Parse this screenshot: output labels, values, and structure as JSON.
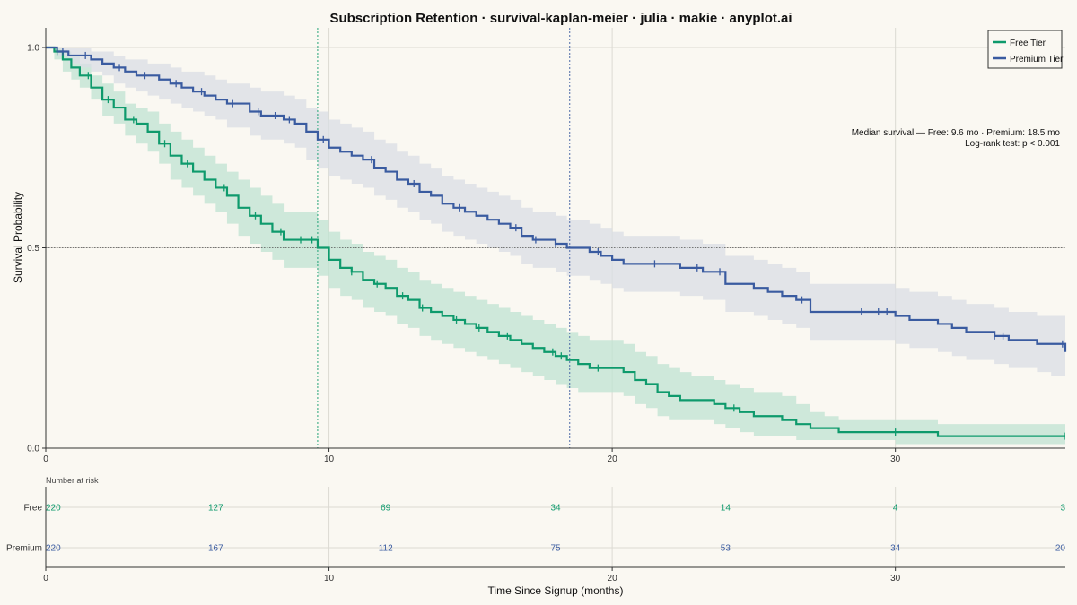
{
  "title": "Subscription Retention · survival-kaplan-meier · julia · makie · anyplot.ai",
  "colors": {
    "free": "#0e9a6c",
    "premium": "#3a5ba0",
    "free_band": "#bfe3d2",
    "premium_band": "#d9dde4",
    "background": "#faf8f2"
  },
  "chart_data": [
    {
      "type": "line",
      "kind": "kaplan-meier",
      "ylabel": "Survival Probability",
      "xlim": [
        0,
        36
      ],
      "ylim": [
        0,
        1.0
      ],
      "xticks": [
        0,
        10,
        20,
        30
      ],
      "yticks": [
        0.0,
        0.5,
        1.0
      ],
      "ytick_labels": [
        "0.0",
        "0.5",
        "1.0"
      ],
      "legend_position": "top-right",
      "reference_line_y": 0.5,
      "median_lines": [
        {
          "series": "Free Tier",
          "x": 9.6
        },
        {
          "series": "Premium Tier",
          "x": 18.5
        }
      ],
      "annotations": [
        "Median survival — Free: 9.6 mo · Premium: 18.5 mo",
        "Log-rank test: p < 0.001"
      ],
      "series": [
        {
          "name": "Free Tier",
          "color": "#0e9a6c",
          "x": [
            0,
            0.3,
            0.6,
            0.9,
            1.2,
            1.6,
            2.0,
            2.4,
            2.8,
            3.2,
            3.6,
            4.0,
            4.4,
            4.8,
            5.2,
            5.6,
            6.0,
            6.4,
            6.8,
            7.2,
            7.6,
            8.0,
            8.4,
            8.8,
            9.2,
            9.6,
            10.0,
            10.4,
            10.8,
            11.2,
            11.6,
            12.0,
            12.4,
            12.8,
            13.2,
            13.6,
            14.0,
            14.4,
            14.8,
            15.2,
            15.6,
            16.0,
            16.4,
            16.8,
            17.2,
            17.6,
            18.0,
            18.4,
            18.8,
            19.2,
            19.6,
            20.0,
            20.4,
            20.8,
            21.2,
            21.6,
            22.0,
            22.4,
            22.8,
            23.2,
            23.6,
            24.0,
            24.5,
            25.0,
            25.5,
            26.0,
            26.5,
            27.0,
            27.5,
            28.0,
            28.5,
            29.0,
            29.5,
            30.0,
            30.5,
            31.0,
            31.5,
            32.0,
            33.0,
            34.0,
            35.0,
            36.0
          ],
          "y": [
            1.0,
            0.99,
            0.97,
            0.95,
            0.93,
            0.9,
            0.87,
            0.85,
            0.82,
            0.81,
            0.79,
            0.76,
            0.73,
            0.71,
            0.69,
            0.67,
            0.65,
            0.63,
            0.6,
            0.58,
            0.56,
            0.54,
            0.52,
            0.52,
            0.52,
            0.5,
            0.47,
            0.45,
            0.44,
            0.42,
            0.41,
            0.4,
            0.38,
            0.37,
            0.35,
            0.34,
            0.33,
            0.32,
            0.31,
            0.3,
            0.29,
            0.28,
            0.27,
            0.26,
            0.25,
            0.24,
            0.23,
            0.22,
            0.21,
            0.2,
            0.2,
            0.2,
            0.19,
            0.17,
            0.16,
            0.14,
            0.13,
            0.12,
            0.12,
            0.12,
            0.11,
            0.1,
            0.09,
            0.08,
            0.08,
            0.07,
            0.06,
            0.05,
            0.05,
            0.04,
            0.04,
            0.04,
            0.04,
            0.04,
            0.04,
            0.04,
            0.03,
            0.03,
            0.03,
            0.03,
            0.03,
            0.03
          ],
          "lower": [
            1.0,
            0.97,
            0.94,
            0.92,
            0.9,
            0.87,
            0.83,
            0.81,
            0.78,
            0.76,
            0.74,
            0.71,
            0.67,
            0.65,
            0.63,
            0.61,
            0.59,
            0.56,
            0.53,
            0.51,
            0.49,
            0.47,
            0.45,
            0.45,
            0.45,
            0.43,
            0.4,
            0.38,
            0.37,
            0.35,
            0.34,
            0.33,
            0.31,
            0.3,
            0.28,
            0.27,
            0.26,
            0.25,
            0.24,
            0.23,
            0.22,
            0.21,
            0.2,
            0.19,
            0.18,
            0.17,
            0.16,
            0.15,
            0.14,
            0.14,
            0.14,
            0.14,
            0.13,
            0.11,
            0.1,
            0.08,
            0.07,
            0.07,
            0.07,
            0.07,
            0.06,
            0.05,
            0.04,
            0.03,
            0.03,
            0.03,
            0.02,
            0.02,
            0.02,
            0.02,
            0.02,
            0.02,
            0.02,
            0.01,
            0.01,
            0.01,
            0.01,
            0.01,
            0.01,
            0.01,
            0.01,
            0.01
          ],
          "upper": [
            1.0,
            1.0,
            0.99,
            0.98,
            0.96,
            0.93,
            0.91,
            0.89,
            0.86,
            0.85,
            0.84,
            0.81,
            0.79,
            0.77,
            0.75,
            0.73,
            0.71,
            0.69,
            0.67,
            0.65,
            0.63,
            0.61,
            0.59,
            0.59,
            0.59,
            0.57,
            0.54,
            0.52,
            0.51,
            0.49,
            0.48,
            0.47,
            0.45,
            0.44,
            0.42,
            0.41,
            0.4,
            0.39,
            0.38,
            0.37,
            0.36,
            0.35,
            0.34,
            0.33,
            0.32,
            0.31,
            0.3,
            0.29,
            0.28,
            0.27,
            0.27,
            0.27,
            0.26,
            0.24,
            0.23,
            0.21,
            0.2,
            0.19,
            0.18,
            0.18,
            0.17,
            0.16,
            0.15,
            0.14,
            0.14,
            0.13,
            0.11,
            0.09,
            0.08,
            0.07,
            0.07,
            0.07,
            0.07,
            0.07,
            0.07,
            0.07,
            0.06,
            0.06,
            0.06,
            0.06,
            0.06,
            0.06
          ],
          "censored": [
            0.4,
            1.5,
            2.2,
            3.1,
            4.2,
            5.0,
            6.3,
            7.4,
            8.3,
            9.0,
            9.4,
            10.8,
            11.7,
            12.6,
            13.3,
            14.5,
            15.3,
            16.3,
            17.9,
            18.2,
            19.5,
            24.3,
            30.0,
            36.0
          ]
        },
        {
          "name": "Premium Tier",
          "color": "#3a5ba0",
          "x": [
            0,
            0.4,
            0.8,
            1.2,
            1.6,
            2.0,
            2.4,
            2.8,
            3.2,
            3.6,
            4.0,
            4.4,
            4.8,
            5.2,
            5.6,
            6.0,
            6.4,
            6.8,
            7.2,
            7.6,
            8.0,
            8.4,
            8.8,
            9.2,
            9.6,
            10.0,
            10.4,
            10.8,
            11.2,
            11.6,
            12.0,
            12.4,
            12.8,
            13.2,
            13.6,
            14.0,
            14.4,
            14.8,
            15.2,
            15.6,
            16.0,
            16.4,
            16.8,
            17.2,
            17.6,
            18.0,
            18.4,
            18.8,
            19.2,
            19.6,
            20.0,
            20.4,
            20.8,
            21.2,
            21.6,
            22.0,
            22.4,
            22.8,
            23.2,
            23.6,
            24.0,
            24.5,
            25.0,
            25.5,
            26.0,
            26.5,
            27.0,
            28.0,
            29.0,
            29.5,
            30.0,
            30.5,
            31.0,
            31.5,
            32.0,
            32.5,
            33.0,
            33.5,
            34.0,
            34.5,
            35.0,
            35.5,
            36.0
          ],
          "y": [
            1.0,
            0.99,
            0.98,
            0.98,
            0.97,
            0.96,
            0.95,
            0.94,
            0.93,
            0.93,
            0.92,
            0.91,
            0.9,
            0.89,
            0.88,
            0.87,
            0.86,
            0.86,
            0.84,
            0.83,
            0.83,
            0.82,
            0.81,
            0.79,
            0.77,
            0.75,
            0.74,
            0.73,
            0.72,
            0.7,
            0.69,
            0.67,
            0.66,
            0.64,
            0.63,
            0.61,
            0.6,
            0.59,
            0.58,
            0.57,
            0.56,
            0.55,
            0.53,
            0.52,
            0.52,
            0.51,
            0.5,
            0.5,
            0.49,
            0.48,
            0.47,
            0.46,
            0.46,
            0.46,
            0.46,
            0.46,
            0.45,
            0.45,
            0.44,
            0.44,
            0.41,
            0.41,
            0.4,
            0.39,
            0.38,
            0.37,
            0.34,
            0.34,
            0.34,
            0.34,
            0.33,
            0.32,
            0.32,
            0.31,
            0.3,
            0.29,
            0.29,
            0.28,
            0.27,
            0.27,
            0.26,
            0.26,
            0.24
          ],
          "lower": [
            1.0,
            0.98,
            0.96,
            0.95,
            0.94,
            0.93,
            0.91,
            0.9,
            0.89,
            0.88,
            0.87,
            0.86,
            0.85,
            0.84,
            0.83,
            0.82,
            0.8,
            0.8,
            0.78,
            0.77,
            0.77,
            0.76,
            0.75,
            0.72,
            0.7,
            0.68,
            0.67,
            0.66,
            0.65,
            0.63,
            0.62,
            0.6,
            0.59,
            0.57,
            0.56,
            0.54,
            0.53,
            0.52,
            0.51,
            0.5,
            0.49,
            0.48,
            0.46,
            0.45,
            0.45,
            0.44,
            0.43,
            0.43,
            0.42,
            0.41,
            0.4,
            0.39,
            0.39,
            0.39,
            0.39,
            0.39,
            0.38,
            0.38,
            0.37,
            0.37,
            0.34,
            0.34,
            0.33,
            0.32,
            0.31,
            0.3,
            0.27,
            0.27,
            0.27,
            0.27,
            0.26,
            0.25,
            0.25,
            0.24,
            0.23,
            0.22,
            0.22,
            0.21,
            0.2,
            0.2,
            0.19,
            0.18,
            0.16
          ],
          "upper": [
            1.0,
            1.0,
            1.0,
            1.0,
            0.99,
            0.99,
            0.98,
            0.97,
            0.97,
            0.96,
            0.96,
            0.95,
            0.94,
            0.94,
            0.93,
            0.92,
            0.91,
            0.91,
            0.9,
            0.89,
            0.89,
            0.88,
            0.87,
            0.85,
            0.84,
            0.82,
            0.81,
            0.8,
            0.79,
            0.77,
            0.76,
            0.74,
            0.73,
            0.71,
            0.7,
            0.68,
            0.67,
            0.66,
            0.65,
            0.64,
            0.63,
            0.62,
            0.6,
            0.59,
            0.59,
            0.58,
            0.57,
            0.57,
            0.56,
            0.55,
            0.54,
            0.53,
            0.53,
            0.53,
            0.53,
            0.53,
            0.52,
            0.52,
            0.51,
            0.51,
            0.48,
            0.48,
            0.47,
            0.46,
            0.45,
            0.44,
            0.41,
            0.41,
            0.41,
            0.41,
            0.4,
            0.39,
            0.39,
            0.38,
            0.37,
            0.36,
            0.36,
            0.35,
            0.34,
            0.34,
            0.33,
            0.33,
            0.32
          ],
          "censored": [
            0.6,
            1.4,
            2.6,
            3.5,
            4.6,
            5.5,
            6.6,
            7.5,
            8.1,
            8.6,
            9.8,
            11.5,
            13.0,
            14.6,
            16.6,
            17.3,
            18.0,
            19.5,
            21.5,
            23.0,
            23.8,
            26.7,
            28.8,
            29.4,
            29.7,
            33.5,
            33.8,
            35.9
          ]
        }
      ]
    },
    {
      "type": "table",
      "title": "Number at risk",
      "xlabel": "Time Since Signup (months)",
      "xlim": [
        0,
        36
      ],
      "xticks": [
        0,
        10,
        20,
        30
      ],
      "times": [
        0,
        6,
        12,
        18,
        24,
        30,
        36
      ],
      "rows": [
        {
          "label": "Free",
          "values": [
            "220",
            "127",
            "69",
            "34",
            "14",
            "4",
            "3"
          ]
        },
        {
          "label": "Premium",
          "values": [
            "220",
            "167",
            "112",
            "75",
            "53",
            "34",
            "20"
          ]
        }
      ]
    }
  ]
}
